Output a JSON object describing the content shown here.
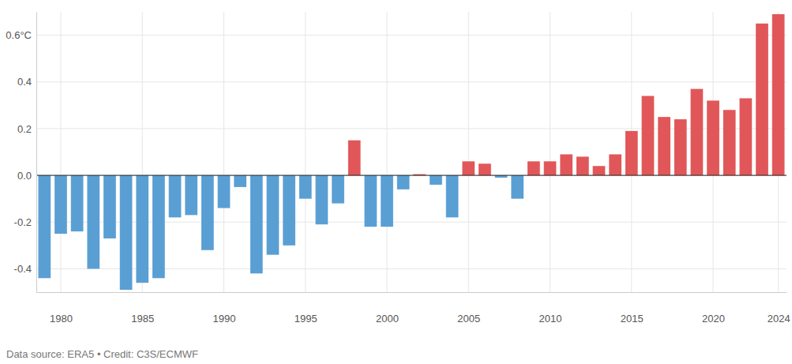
{
  "chart_data": {
    "type": "bar",
    "source": "Data source: ERA5 • Credit: C3S/ECMWF",
    "x": [
      1979,
      1980,
      1981,
      1982,
      1983,
      1984,
      1985,
      1986,
      1987,
      1988,
      1989,
      1990,
      1991,
      1992,
      1993,
      1994,
      1995,
      1996,
      1997,
      1998,
      1999,
      2000,
      2001,
      2002,
      2003,
      2004,
      2005,
      2006,
      2007,
      2008,
      2009,
      2010,
      2011,
      2012,
      2013,
      2014,
      2015,
      2016,
      2017,
      2018,
      2019,
      2020,
      2021,
      2022,
      2023,
      2024
    ],
    "values": [
      -0.44,
      -0.25,
      -0.24,
      -0.4,
      -0.27,
      -0.49,
      -0.46,
      -0.44,
      -0.18,
      -0.17,
      -0.32,
      -0.14,
      -0.05,
      -0.42,
      -0.34,
      -0.3,
      -0.1,
      -0.21,
      -0.12,
      0.15,
      -0.22,
      -0.22,
      -0.06,
      0.005,
      -0.04,
      -0.18,
      0.06,
      0.05,
      -0.01,
      -0.1,
      0.06,
      0.06,
      0.09,
      0.08,
      0.04,
      0.09,
      0.19,
      0.34,
      0.25,
      0.24,
      0.37,
      0.32,
      0.28,
      0.33,
      0.65,
      0.69
    ],
    "colors": [
      "#5a9fd4",
      "#5a9fd4",
      "#5a9fd4",
      "#5a9fd4",
      "#5a9fd4",
      "#5a9fd4",
      "#5a9fd4",
      "#5a9fd4",
      "#5a9fd4",
      "#5a9fd4",
      "#5a9fd4",
      "#5a9fd4",
      "#5a9fd4",
      "#5a9fd4",
      "#5a9fd4",
      "#5a9fd4",
      "#5a9fd4",
      "#5a9fd4",
      "#5a9fd4",
      "#e15759",
      "#5a9fd4",
      "#5a9fd4",
      "#5a9fd4",
      "#e15759",
      "#5a9fd4",
      "#5a9fd4",
      "#e15759",
      "#e15759",
      "#5a9fd4",
      "#5a9fd4",
      "#e15759",
      "#e15759",
      "#e15759",
      "#e15759",
      "#e15759",
      "#e15759",
      "#e15759",
      "#e15759",
      "#e15759",
      "#e15759",
      "#e15759",
      "#e15759",
      "#e15759",
      "#e15759",
      "#e15759",
      "#e15759"
    ],
    "xlim": [
      1978.5,
      2024.5
    ],
    "xticks": [
      1980,
      1985,
      1990,
      1995,
      2000,
      2005,
      2010,
      2015,
      2020,
      2024
    ],
    "ylim": [
      -0.5,
      0.7
    ],
    "yticks": [
      -0.4,
      -0.2,
      {
        "value": 0,
        "label": "0.0"
      },
      0.2,
      0.4,
      {
        "value": 0.6,
        "label": "0.6°C"
      }
    ],
    "grid": true
  }
}
